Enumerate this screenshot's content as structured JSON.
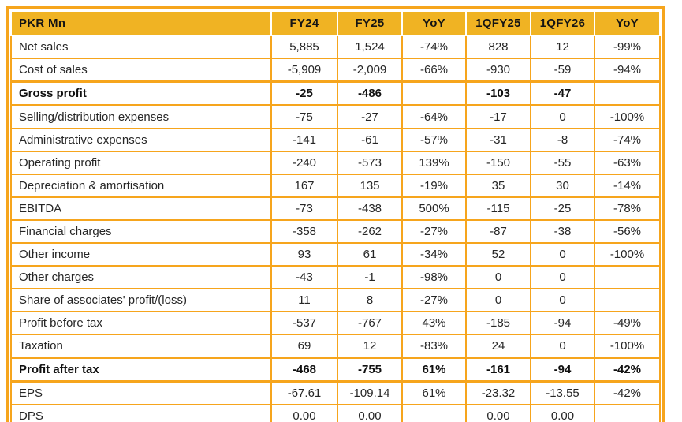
{
  "colors": {
    "header_bg": "#F0B323",
    "grid_border": "#F6A51D",
    "text": "#1E1E1E",
    "background": "#FFFFFF"
  },
  "chart_data": {
    "type": "table",
    "title": "PKR Mn",
    "columns": [
      "PKR Mn",
      "FY24",
      "FY25",
      "YoY",
      "1QFY25",
      "1QFY26",
      "YoY"
    ],
    "rows": [
      {
        "label": "Net sales",
        "bold": false,
        "values": [
          "5,885",
          "1,524",
          "-74%",
          "828",
          "12",
          "-99%"
        ]
      },
      {
        "label": "Cost of sales",
        "bold": false,
        "values": [
          "-5,909",
          "-2,009",
          "-66%",
          "-930",
          "-59",
          "-94%"
        ]
      },
      {
        "label": "Gross profit",
        "bold": true,
        "values": [
          "-25",
          "-486",
          "",
          "-103",
          "-47",
          ""
        ]
      },
      {
        "label": "Selling/distribution expenses",
        "bold": false,
        "values": [
          "-75",
          "-27",
          "-64%",
          "-17",
          "0",
          "-100%"
        ]
      },
      {
        "label": "Administrative expenses",
        "bold": false,
        "values": [
          "-141",
          "-61",
          "-57%",
          "-31",
          "-8",
          "-74%"
        ]
      },
      {
        "label": "Operating profit",
        "bold": false,
        "values": [
          "-240",
          "-573",
          "139%",
          "-150",
          "-55",
          "-63%"
        ]
      },
      {
        "label": "Depreciation & amortisation",
        "bold": false,
        "values": [
          "167",
          "135",
          "-19%",
          "35",
          "30",
          "-14%"
        ]
      },
      {
        "label": "EBITDA",
        "bold": false,
        "values": [
          "-73",
          "-438",
          "500%",
          "-115",
          "-25",
          "-78%"
        ]
      },
      {
        "label": "Financial charges",
        "bold": false,
        "values": [
          "-358",
          "-262",
          "-27%",
          "-87",
          "-38",
          "-56%"
        ]
      },
      {
        "label": "Other income",
        "bold": false,
        "values": [
          "93",
          "61",
          "-34%",
          "52",
          "0",
          "-100%"
        ]
      },
      {
        "label": "Other charges",
        "bold": false,
        "values": [
          "-43",
          "-1",
          "-98%",
          "0",
          "0",
          ""
        ]
      },
      {
        "label": "Share of associates' profit/(loss)",
        "bold": false,
        "values": [
          "11",
          "8",
          "-27%",
          "0",
          "0",
          ""
        ]
      },
      {
        "label": "Profit before tax",
        "bold": false,
        "values": [
          "-537",
          "-767",
          "43%",
          "-185",
          "-94",
          "-49%"
        ]
      },
      {
        "label": "Taxation",
        "bold": false,
        "values": [
          "69",
          "12",
          "-83%",
          "24",
          "0",
          "-100%"
        ]
      },
      {
        "label": "Profit after tax",
        "bold": true,
        "values": [
          "-468",
          "-755",
          "61%",
          "-161",
          "-94",
          "-42%"
        ]
      },
      {
        "label": "EPS",
        "bold": false,
        "values": [
          "-67.61",
          "-109.14",
          "61%",
          "-23.32",
          "-13.55",
          "-42%"
        ]
      },
      {
        "label": "DPS",
        "bold": false,
        "values": [
          "0.00",
          "0.00",
          "",
          "0.00",
          "0.00",
          ""
        ]
      }
    ]
  }
}
